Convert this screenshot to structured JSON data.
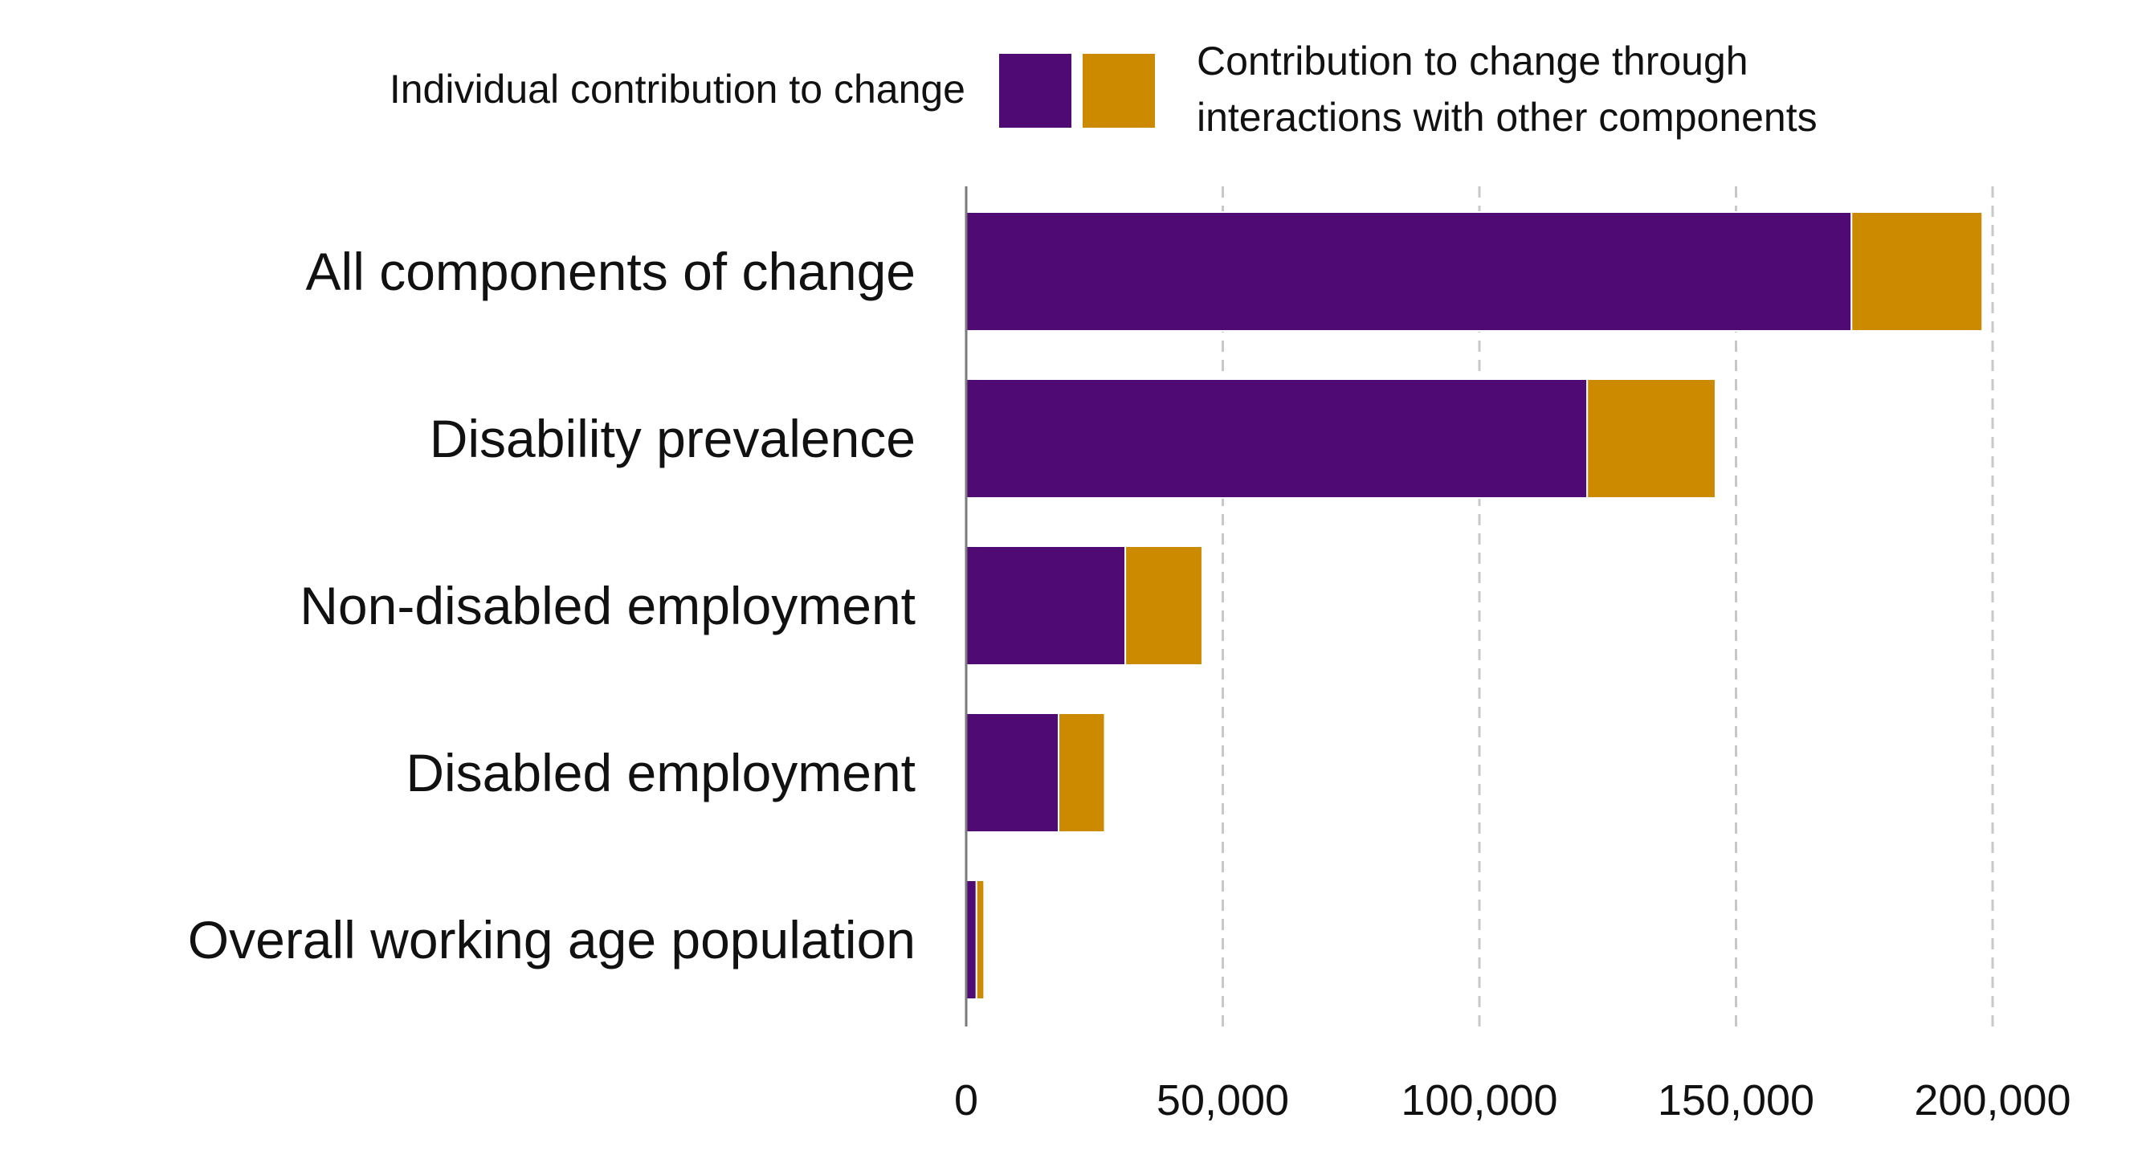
{
  "chart_data": {
    "type": "bar",
    "orientation": "horizontal",
    "stacked": true,
    "categories": [
      "All components of change",
      "Disability prevalence",
      "Non-disabled employment",
      "Disabled employment",
      "Overall working age population"
    ],
    "series": [
      {
        "name": "Individual contribution to change",
        "color": "#500a73",
        "values": [
          172500,
          121000,
          31000,
          18000,
          2000
        ]
      },
      {
        "name": "Contribution to change through interactions with other components",
        "color": "#cc8a00",
        "values": [
          25500,
          25000,
          15000,
          9000,
          1500
        ]
      }
    ],
    "legend": {
      "left_label": "Individual contribution to change",
      "right_label_lines": [
        "Contribution to change through",
        "interactions with other components"
      ],
      "placement": "top"
    },
    "xlim": [
      0,
      200000
    ],
    "x_ticks": [
      0,
      50000,
      100000,
      150000,
      200000
    ],
    "x_tick_labels": [
      "0",
      "50,000",
      "100,000",
      "150,000",
      "200,000"
    ],
    "grid": "vertical dashed",
    "title": "",
    "xlabel": "",
    "ylabel": ""
  }
}
